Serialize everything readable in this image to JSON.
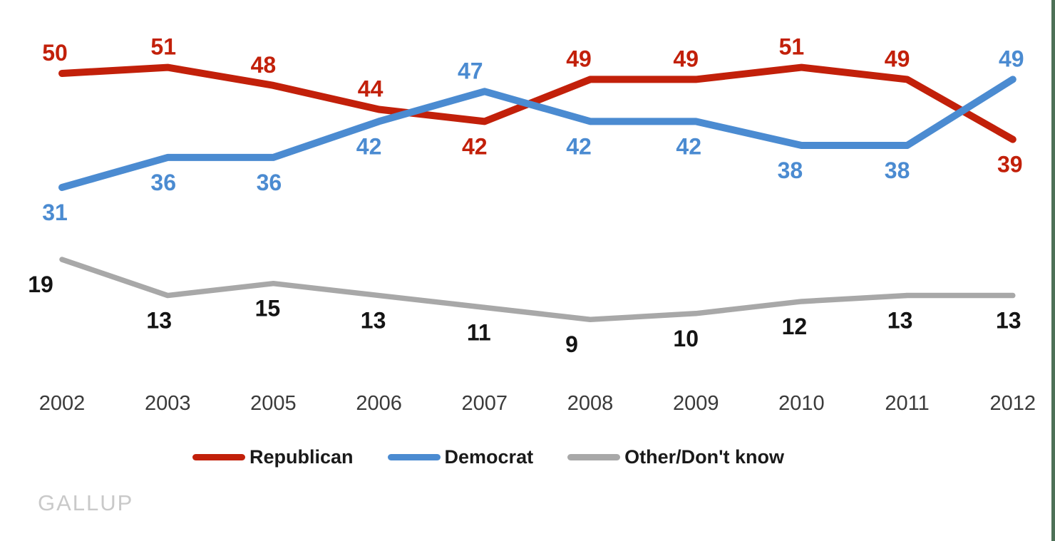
{
  "footer": {
    "source": "GALLUP"
  },
  "chart_data": {
    "type": "line",
    "title": "",
    "xlabel": "",
    "ylabel": "",
    "categories": [
      "2002",
      "2003",
      "2005",
      "2006",
      "2007",
      "2008",
      "2009",
      "2010",
      "2011",
      "2012"
    ],
    "series": [
      {
        "name": "Republican",
        "color": "#c2200a",
        "values": [
          50,
          51,
          48,
          44,
          42,
          49,
          49,
          51,
          49,
          39
        ],
        "label_side": [
          "above",
          "above",
          "above",
          "above",
          "below",
          "above",
          "above",
          "above",
          "above",
          "below"
        ],
        "label_dx": [
          -10,
          -6,
          -14,
          -12,
          -14,
          -16,
          -14,
          -14,
          -14,
          -4
        ]
      },
      {
        "name": "Democrat",
        "color": "#4b8bd1",
        "values": [
          31,
          36,
          36,
          42,
          47,
          42,
          42,
          38,
          38,
          49
        ],
        "label_side": [
          "below",
          "below",
          "below",
          "below",
          "above",
          "below",
          "below",
          "below",
          "below",
          "above"
        ],
        "label_dx": [
          -10,
          -6,
          -6,
          -14,
          -20,
          -16,
          -10,
          -16,
          -14,
          -2
        ]
      },
      {
        "name": "Other/Don't know",
        "color": "#a8a8a8",
        "label_color": "#141414",
        "values": [
          19,
          13,
          15,
          13,
          11,
          9,
          10,
          12,
          13,
          13
        ],
        "label_side": [
          "below",
          "below",
          "below",
          "below",
          "below",
          "below",
          "below",
          "below",
          "below",
          "below"
        ],
        "label_dx": [
          -30,
          -12,
          -8,
          -8,
          -8,
          -26,
          -14,
          -10,
          -10,
          -6
        ]
      }
    ],
    "ylim": [
      0,
      55
    ],
    "grid": false,
    "legend_position": "bottom",
    "axis_labels_color": "#3a3a3a"
  }
}
